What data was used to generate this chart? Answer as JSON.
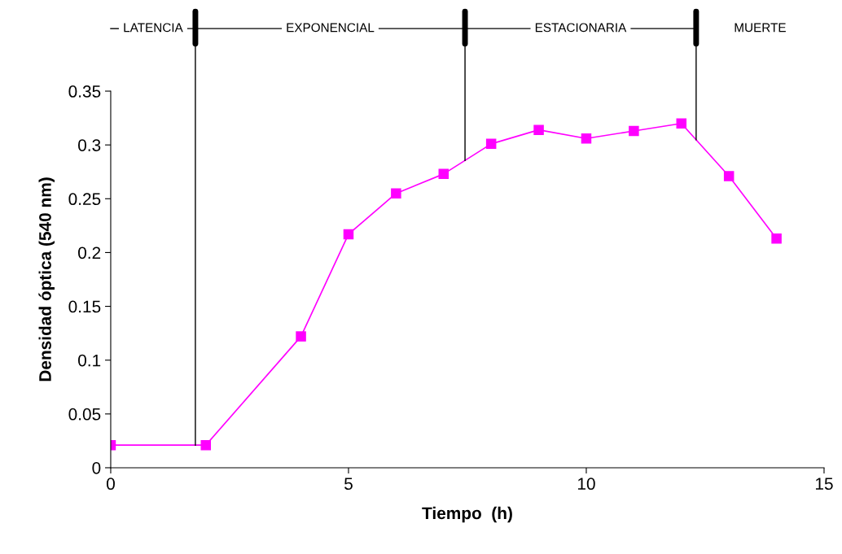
{
  "chart_data": {
    "type": "line",
    "xlabel": "Tiempo  (h)",
    "ylabel": "Densidad óptica (540 nm)",
    "x": [
      0,
      2,
      4,
      5,
      6,
      7,
      8,
      9,
      10,
      11,
      12,
      13,
      14
    ],
    "series": [
      {
        "color": "#ff00ff",
        "values": [
          0.021,
          0.021,
          0.122,
          0.217,
          0.255,
          0.273,
          0.301,
          0.314,
          0.306,
          0.313,
          0.32,
          0.271,
          0.213
        ]
      }
    ],
    "marker": "square",
    "line_style": "solid",
    "grid": false,
    "legend": false,
    "xlim": [
      0,
      15
    ],
    "xticks": [
      0,
      5,
      10,
      15
    ],
    "ylim": [
      0,
      0.35
    ],
    "yticks": [
      0,
      0.05,
      0.1,
      0.15,
      0.2,
      0.25,
      0.3,
      0.35
    ],
    "ref_lines": [
      {
        "axis": "x",
        "value": 1.78,
        "color": "#000000"
      },
      {
        "axis": "x",
        "value": 7.45,
        "color": "#000000"
      },
      {
        "axis": "x",
        "value": 12.31,
        "color": "#000000"
      }
    ],
    "annotations": [
      "LATENCIA",
      "EXPONENCIAL",
      "ESTACIONARIA",
      "MUERTE"
    ]
  }
}
